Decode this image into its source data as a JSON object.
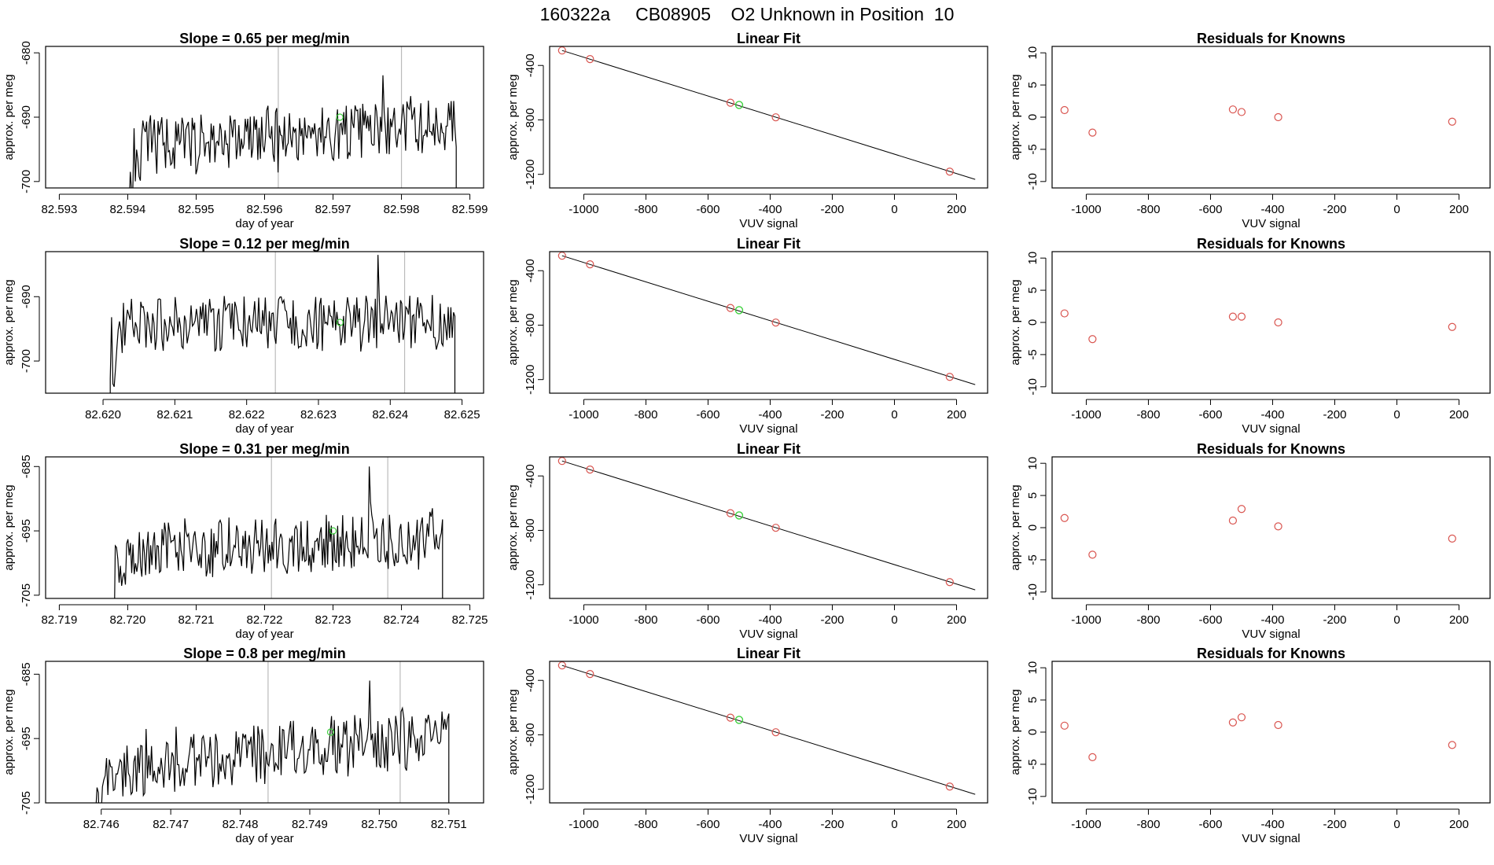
{
  "figure": {
    "title": "160322a     CB08905    O2 Unknown in Position  10",
    "colors": {
      "line": "#000000",
      "known": "#d9544f",
      "unknown": "#3fd13f",
      "divider": "#bbbbbb"
    }
  },
  "chart_data": [
    {
      "type": "line",
      "title": "Slope =  0.65  per meg/min",
      "xlabel": "day of year",
      "ylabel": "approx. per meg",
      "xlim": [
        82.5928,
        82.5992
      ],
      "ylim": [
        -701,
        -679
      ],
      "xticks": [
        82.593,
        82.594,
        82.595,
        82.596,
        82.597,
        82.598,
        82.599
      ],
      "xdec": 3,
      "yticks": [
        -700,
        -690,
        -680
      ],
      "start": 82.594,
      "end": 82.5988,
      "base": -693.2,
      "trend": 0.45,
      "amp": 4.3,
      "seed": 11,
      "top_value": -683.5,
      "dividers": [
        82.5962,
        82.598
      ],
      "point": {
        "x": 82.5971,
        "y": -690
      }
    },
    {
      "type": "scatter",
      "title": "Linear Fit",
      "xlabel": "VUV signal",
      "ylabel": "approx. per meg",
      "xlim": [
        -1110,
        300
      ],
      "ylim": [
        -1300,
        -260
      ],
      "xticks": [
        -1000,
        -800,
        -600,
        -400,
        -200,
        0,
        200
      ],
      "yticks": [
        -400,
        -800,
        -1200
      ],
      "known_x": [
        -1070,
        -980,
        -528,
        -382,
        178
      ],
      "known_y": [
        -290,
        -353,
        -674,
        -781,
        -1180
      ],
      "unknown": {
        "x": -500,
        "y": -690
      },
      "fit": {
        "x": [
          -1070,
          260
        ],
        "y": [
          -290,
          -1237
        ]
      }
    },
    {
      "type": "scatter",
      "title": "Residuals for Knowns",
      "xlabel": "VUV signal",
      "ylabel": "approx. per meg",
      "xlim": [
        -1110,
        300
      ],
      "ylim": [
        -11,
        11
      ],
      "xticks": [
        -1000,
        -800,
        -600,
        -400,
        -200,
        0,
        200
      ],
      "yticks": [
        -10,
        -5,
        0,
        5,
        10
      ],
      "known_x": [
        -1070,
        -980,
        -528,
        -500,
        -382,
        178
      ],
      "known_y": [
        1.1,
        -2.4,
        1.2,
        0.8,
        0.0,
        -0.7
      ]
    },
    {
      "type": "line",
      "title": "Slope =  0.12  per meg/min",
      "xlabel": "day of year",
      "ylabel": "approx. per meg",
      "xlim": [
        82.6192,
        82.6253
      ],
      "ylim": [
        -705,
        -683
      ],
      "xticks": [
        82.62,
        82.621,
        82.622,
        82.623,
        82.624,
        82.625
      ],
      "xdec": 3,
      "yticks": [
        -700,
        -690
      ],
      "start": 82.6201,
      "end": 82.6249,
      "base": -694.2,
      "trend": 0.1,
      "amp": 4.2,
      "seed": 23,
      "top_value": -683.5,
      "dividers": [
        82.6224,
        82.6242
      ],
      "point": {
        "x": 82.6233,
        "y": -694
      }
    },
    {
      "type": "scatter",
      "title": "Linear Fit",
      "xlabel": "VUV signal",
      "ylabel": "approx. per meg",
      "xlim": [
        -1110,
        300
      ],
      "ylim": [
        -1300,
        -260
      ],
      "xticks": [
        -1000,
        -800,
        -600,
        -400,
        -200,
        0,
        200
      ],
      "yticks": [
        -400,
        -800,
        -1200
      ],
      "known_x": [
        -1070,
        -980,
        -528,
        -382,
        178
      ],
      "known_y": [
        -290,
        -353,
        -674,
        -781,
        -1180
      ],
      "unknown": {
        "x": -500,
        "y": -690
      },
      "fit": {
        "x": [
          -1070,
          260
        ],
        "y": [
          -290,
          -1237
        ]
      }
    },
    {
      "type": "scatter",
      "title": "Residuals for Knowns",
      "xlabel": "VUV signal",
      "ylabel": "approx. per meg",
      "xlim": [
        -1110,
        300
      ],
      "ylim": [
        -11,
        11
      ],
      "xticks": [
        -1000,
        -800,
        -600,
        -400,
        -200,
        0,
        200
      ],
      "yticks": [
        -10,
        -5,
        0,
        5,
        10
      ],
      "known_x": [
        -1070,
        -980,
        -528,
        -500,
        -382,
        178
      ],
      "known_y": [
        1.4,
        -2.6,
        0.9,
        0.9,
        0.0,
        -0.7
      ]
    },
    {
      "type": "line",
      "title": "Slope =  0.31  per meg/min",
      "xlabel": "day of year",
      "ylabel": "approx. per meg",
      "xlim": [
        82.7188,
        82.7252
      ],
      "ylim": [
        -705.5,
        -683.5
      ],
      "xticks": [
        82.719,
        82.72,
        82.721,
        82.722,
        82.723,
        82.724,
        82.725
      ],
      "xdec": 3,
      "yticks": [
        -705,
        -695,
        -685
      ],
      "start": 82.7198,
      "end": 82.7246,
      "base": -697.5,
      "trend": 0.3,
      "amp": 4.4,
      "seed": 37,
      "top_value": -685,
      "dividers": [
        82.7221,
        82.7238
      ],
      "point": {
        "x": 82.723,
        "y": -695
      }
    },
    {
      "type": "scatter",
      "title": "Linear Fit",
      "xlabel": "VUV signal",
      "ylabel": "approx. per meg",
      "xlim": [
        -1110,
        300
      ],
      "ylim": [
        -1300,
        -260
      ],
      "xticks": [
        -1000,
        -800,
        -600,
        -400,
        -200,
        0,
        200
      ],
      "yticks": [
        -400,
        -800,
        -1200
      ],
      "known_x": [
        -1070,
        -980,
        -528,
        -382,
        178
      ],
      "known_y": [
        -290,
        -353,
        -674,
        -781,
        -1180
      ],
      "unknown": {
        "x": -500,
        "y": -690
      },
      "fit": {
        "x": [
          -1070,
          260
        ],
        "y": [
          -290,
          -1237
        ]
      }
    },
    {
      "type": "scatter",
      "title": "Residuals for Knowns",
      "xlabel": "VUV signal",
      "ylabel": "approx. per meg",
      "xlim": [
        -1110,
        300
      ],
      "ylim": [
        -11,
        11
      ],
      "xticks": [
        -1000,
        -800,
        -600,
        -400,
        -200,
        0,
        200
      ],
      "yticks": [
        -10,
        -5,
        0,
        5,
        10
      ],
      "known_x": [
        -1070,
        -980,
        -528,
        -500,
        -382,
        178
      ],
      "known_y": [
        1.5,
        -4.2,
        1.1,
        2.9,
        0.2,
        -1.7
      ]
    },
    {
      "type": "line",
      "title": "Slope =  0.8  per meg/min",
      "xlabel": "day of year",
      "ylabel": "approx. per meg",
      "xlim": [
        82.7452,
        82.7515
      ],
      "ylim": [
        -705,
        -683
      ],
      "xticks": [
        82.746,
        82.747,
        82.748,
        82.749,
        82.75,
        82.751
      ],
      "xdec": 3,
      "yticks": [
        -705,
        -695,
        -685
      ],
      "start": 82.7459,
      "end": 82.751,
      "base": -697.8,
      "trend": 0.7,
      "amp": 4.6,
      "seed": 53,
      "top_value": -686,
      "dividers": [
        82.7484,
        82.7503
      ],
      "point": {
        "x": 82.7493,
        "y": -694
      }
    },
    {
      "type": "scatter",
      "title": "Linear Fit",
      "xlabel": "VUV signal",
      "ylabel": "approx. per meg",
      "xlim": [
        -1110,
        300
      ],
      "ylim": [
        -1300,
        -260
      ],
      "xticks": [
        -1000,
        -800,
        -600,
        -400,
        -200,
        0,
        200
      ],
      "yticks": [
        -400,
        -800,
        -1200
      ],
      "known_x": [
        -1070,
        -980,
        -528,
        -382,
        178
      ],
      "known_y": [
        -290,
        -353,
        -674,
        -781,
        -1180
      ],
      "unknown": {
        "x": -500,
        "y": -690
      },
      "fit": {
        "x": [
          -1070,
          260
        ],
        "y": [
          -290,
          -1237
        ]
      }
    },
    {
      "type": "scatter",
      "title": "Residuals for Knowns",
      "xlabel": "VUV signal",
      "ylabel": "approx. per meg",
      "xlim": [
        -1110,
        300
      ],
      "ylim": [
        -11,
        11
      ],
      "xticks": [
        -1000,
        -800,
        -600,
        -400,
        -200,
        0,
        200
      ],
      "yticks": [
        -10,
        -5,
        0,
        5,
        10
      ],
      "known_x": [
        -1070,
        -980,
        -528,
        -500,
        -382,
        178
      ],
      "known_y": [
        1.0,
        -3.9,
        1.5,
        2.3,
        1.1,
        -2.0
      ]
    }
  ]
}
